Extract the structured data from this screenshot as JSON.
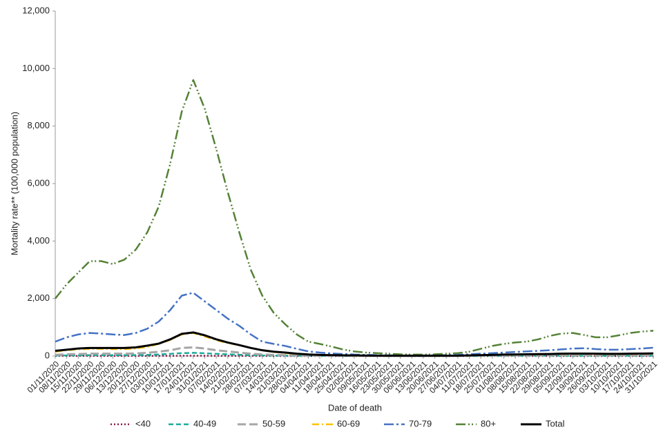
{
  "chart_data": {
    "type": "line",
    "y_label": "Mortality rate** (100,000 population)",
    "x_label": "Date of death",
    "categories": [
      "01/11/2020",
      "08/11/2020",
      "15/11/2020",
      "22/11/2020",
      "29/11/2020",
      "06/12/2020",
      "13/12/2020",
      "20/12/2020",
      "27/12/2020",
      "03/01/2021",
      "10/01/2021",
      "17/01/2021",
      "24/01/2021",
      "31/01/2021",
      "07/02/2021",
      "14/02/2021",
      "21/02/2021",
      "28/02/2021",
      "07/03/2021",
      "14/03/2021",
      "21/03/2021",
      "28/03/2021",
      "04/04/2021",
      "11/04/2021",
      "18/04/2021",
      "25/04/2021",
      "02/05/2021",
      "09/05/2021",
      "16/05/2021",
      "23/05/2021",
      "30/05/2021",
      "06/06/2021",
      "13/06/2021",
      "20/06/2021",
      "27/06/2021",
      "04/07/2021",
      "11/07/2021",
      "18/07/2021",
      "25/07/2021",
      "01/08/2021",
      "08/08/2021",
      "15/08/2021",
      "22/08/2021",
      "29/08/2021",
      "05/09/2021",
      "12/09/2021",
      "19/09/2021",
      "26/09/2021",
      "03/10/2021",
      "10/10/2021",
      "17/10/2021",
      "24/10/2021",
      "31/10/2021"
    ],
    "ylim": [
      0,
      12000
    ],
    "yticks": [
      0,
      {
        "value": 2000,
        "label": "2,000"
      },
      {
        "value": 4000,
        "label": "4,000"
      },
      {
        "value": 6000,
        "label": "6,000"
      },
      {
        "value": 8000,
        "label": "8,000"
      },
      {
        "value": 10000,
        "label": "10,000"
      },
      {
        "value": 12000,
        "label": "12,000"
      }
    ],
    "legend": "bottom",
    "series": [
      {
        "name": "<40",
        "color": "#8b1a4a",
        "dash": "2 3",
        "width": 2.5,
        "values": [
          2,
          3,
          3,
          3,
          3,
          3,
          3,
          3,
          4,
          5,
          6,
          8,
          9,
          8,
          6,
          5,
          4,
          3,
          2,
          2,
          1,
          1,
          1,
          1,
          1,
          1,
          1,
          1,
          1,
          1,
          1,
          1,
          1,
          1,
          1,
          1,
          1,
          1,
          1,
          1,
          1,
          1,
          1,
          1,
          1,
          1,
          1,
          1,
          1,
          1,
          1,
          1,
          1
        ]
      },
      {
        "name": "40-49",
        "color": "#1aab9b",
        "dash": "7 4",
        "width": 2.5,
        "values": [
          15,
          20,
          25,
          30,
          30,
          30,
          30,
          32,
          40,
          55,
          75,
          100,
          110,
          95,
          75,
          60,
          45,
          30,
          20,
          15,
          12,
          8,
          6,
          5,
          4,
          3,
          3,
          2,
          2,
          2,
          2,
          2,
          2,
          2,
          2,
          2,
          3,
          4,
          5,
          6,
          7,
          8,
          8,
          9,
          10,
          10,
          10,
          10,
          9,
          9,
          10,
          10,
          11
        ]
      },
      {
        "name": "50-59",
        "color": "#a6a6a6",
        "dash": "12 5",
        "width": 3,
        "values": [
          40,
          60,
          70,
          80,
          80,
          80,
          80,
          90,
          110,
          150,
          200,
          280,
          300,
          260,
          200,
          160,
          120,
          80,
          55,
          40,
          30,
          20,
          15,
          12,
          10,
          8,
          6,
          5,
          4,
          3,
          3,
          3,
          3,
          3,
          4,
          5,
          8,
          12,
          15,
          18,
          20,
          22,
          24,
          26,
          28,
          30,
          30,
          28,
          26,
          26,
          28,
          30,
          32
        ]
      },
      {
        "name": "60-69",
        "color": "#ffc000",
        "dash": "10 4 2 4",
        "width": 2.5,
        "values": [
          150,
          200,
          230,
          250,
          250,
          240,
          240,
          260,
          320,
          420,
          560,
          750,
          800,
          680,
          550,
          450,
          380,
          280,
          200,
          140,
          100,
          70,
          50,
          35,
          25,
          20,
          15,
          12,
          10,
          8,
          7,
          7,
          7,
          8,
          10,
          12,
          20,
          30,
          40,
          45,
          50,
          55,
          60,
          65,
          70,
          75,
          75,
          70,
          65,
          65,
          70,
          75,
          80
        ]
      },
      {
        "name": "70-79",
        "color": "#4472c4",
        "dash": "14 4 3 4",
        "width": 2.5,
        "values": [
          500,
          650,
          750,
          800,
          780,
          750,
          730,
          800,
          950,
          1200,
          1600,
          2100,
          2200,
          1900,
          1600,
          1300,
          1050,
          750,
          500,
          420,
          350,
          250,
          160,
          120,
          90,
          70,
          50,
          40,
          30,
          25,
          20,
          20,
          20,
          25,
          30,
          40,
          60,
          80,
          100,
          120,
          140,
          160,
          180,
          200,
          230,
          260,
          270,
          240,
          220,
          220,
          240,
          260,
          290
        ]
      },
      {
        "name": "80+",
        "color": "#548235",
        "dash": "14 4 2 3 2 4",
        "width": 2.5,
        "values": [
          2000,
          2500,
          2900,
          3300,
          3300,
          3200,
          3350,
          3700,
          4300,
          5200,
          6700,
          8500,
          9600,
          8600,
          7200,
          5700,
          4300,
          3000,
          2100,
          1500,
          1100,
          750,
          500,
          420,
          330,
          230,
          160,
          120,
          100,
          80,
          60,
          50,
          50,
          60,
          80,
          100,
          150,
          250,
          350,
          420,
          470,
          500,
          580,
          700,
          780,
          800,
          730,
          650,
          650,
          720,
          800,
          850,
          880
        ]
      },
      {
        "name": "Total",
        "color": "#000000",
        "dash": "none",
        "width": 3,
        "values": [
          180,
          220,
          260,
          280,
          280,
          280,
          280,
          300,
          360,
          430,
          580,
          770,
          820,
          720,
          580,
          470,
          380,
          280,
          200,
          150,
          120,
          80,
          55,
          40,
          30,
          25,
          20,
          15,
          12,
          10,
          8,
          8,
          8,
          8,
          10,
          12,
          20,
          30,
          40,
          50,
          55,
          60,
          65,
          70,
          80,
          85,
          85,
          80,
          75,
          75,
          80,
          85,
          90
        ]
      }
    ]
  }
}
